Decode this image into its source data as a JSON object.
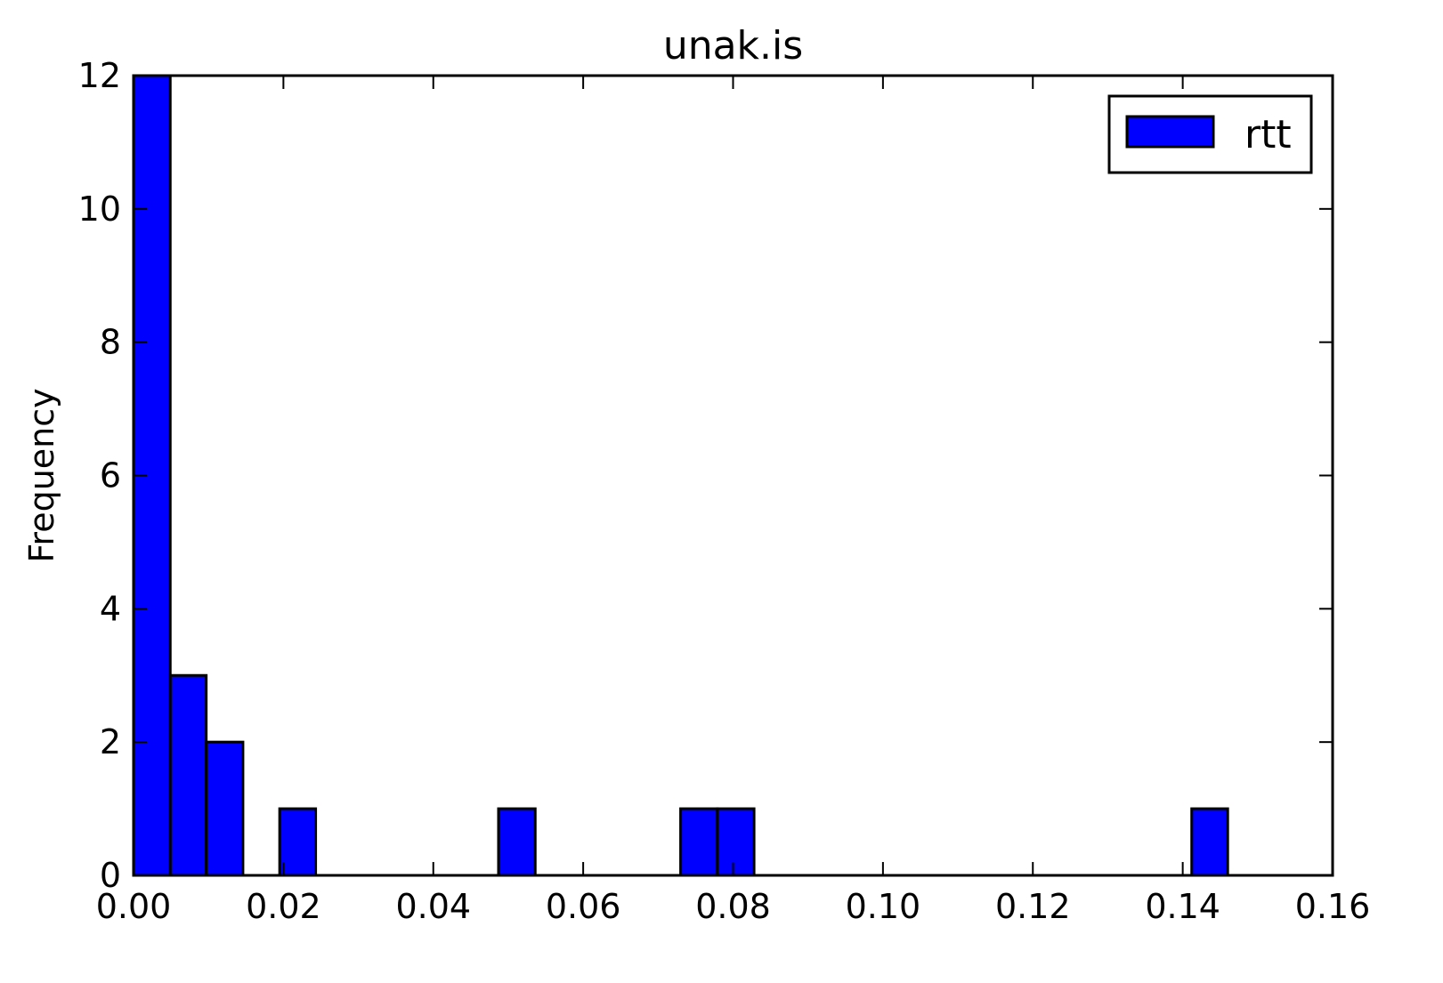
{
  "chart_data": {
    "type": "bar",
    "title": "unak.is",
    "xlabel": "",
    "ylabel": "Frequency",
    "xlim": [
      0,
      0.16
    ],
    "ylim": [
      0,
      12
    ],
    "x_ticks": [
      "0.00",
      "0.02",
      "0.04",
      "0.06",
      "0.08",
      "0.10",
      "0.12",
      "0.14",
      "0.16"
    ],
    "y_ticks": [
      "0",
      "2",
      "4",
      "6",
      "8",
      "10",
      "12"
    ],
    "series": [
      {
        "name": "rtt",
        "color": "#0000ff",
        "bins": [
          {
            "x0": 0.0,
            "x1": 0.0049,
            "count": 12
          },
          {
            "x0": 0.0049,
            "x1": 0.0097,
            "count": 3
          },
          {
            "x0": 0.0097,
            "x1": 0.0146,
            "count": 2
          },
          {
            "x0": 0.0195,
            "x1": 0.0243,
            "count": 1
          },
          {
            "x0": 0.0487,
            "x1": 0.0536,
            "count": 1
          },
          {
            "x0": 0.073,
            "x1": 0.0779,
            "count": 1
          },
          {
            "x0": 0.0779,
            "x1": 0.0828,
            "count": 1
          },
          {
            "x0": 0.1412,
            "x1": 0.146,
            "count": 1
          }
        ]
      }
    ],
    "legend": {
      "position": "top-right",
      "entries": [
        "rtt"
      ]
    },
    "grid": false
  }
}
